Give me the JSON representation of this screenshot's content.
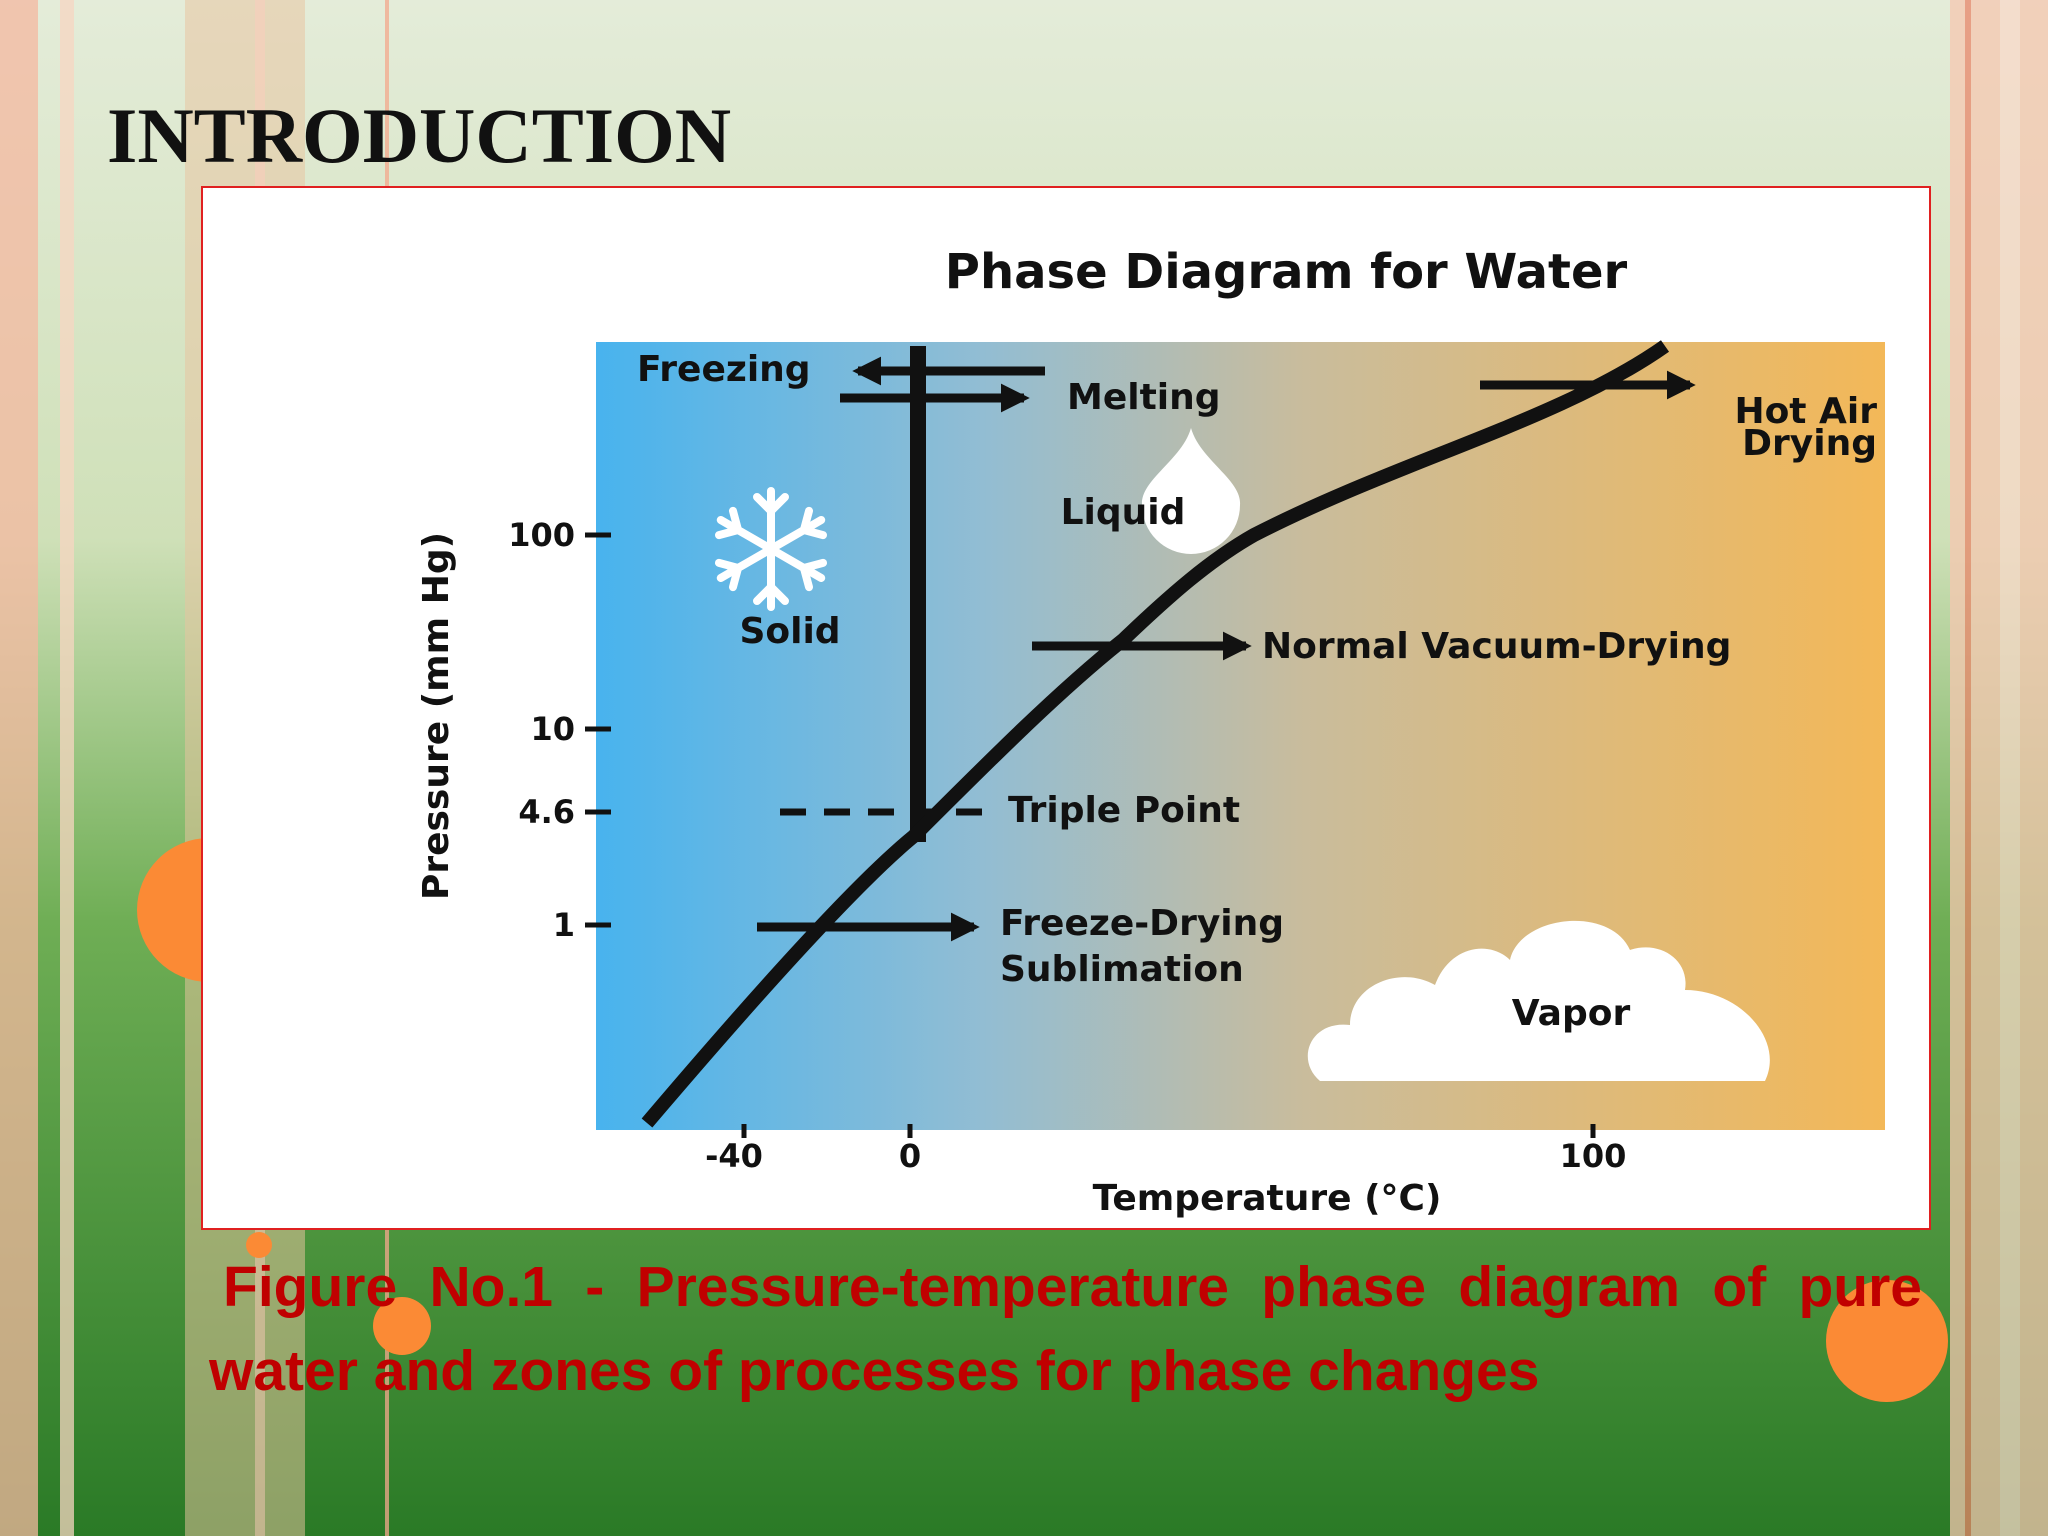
{
  "header": {
    "title": "INTRODUCTION"
  },
  "figure": {
    "title": "Phase Diagram for Water",
    "y_axis_label": "Pressure (mm Hg)",
    "x_axis_label": "Temperature (°C)",
    "y_ticks": [
      "100",
      "10",
      "4.6",
      "1"
    ],
    "x_ticks": [
      "-40",
      "0",
      "100"
    ],
    "regions": [
      "Solid",
      "Liquid",
      "Vapor"
    ],
    "processes": {
      "freezing": "Freezing",
      "melting": "Melting",
      "hot_air_drying": [
        "Hot Air",
        "Drying"
      ],
      "normal_vacuum_drying": "Normal Vacuum-Drying",
      "triple_point": "Triple Point",
      "freeze_drying": [
        "Freeze-Drying",
        "Sublimation"
      ]
    }
  },
  "caption": "Figure No.1 - Pressure-temperature phase diagram of pure water and zones of processes for phase changes"
}
